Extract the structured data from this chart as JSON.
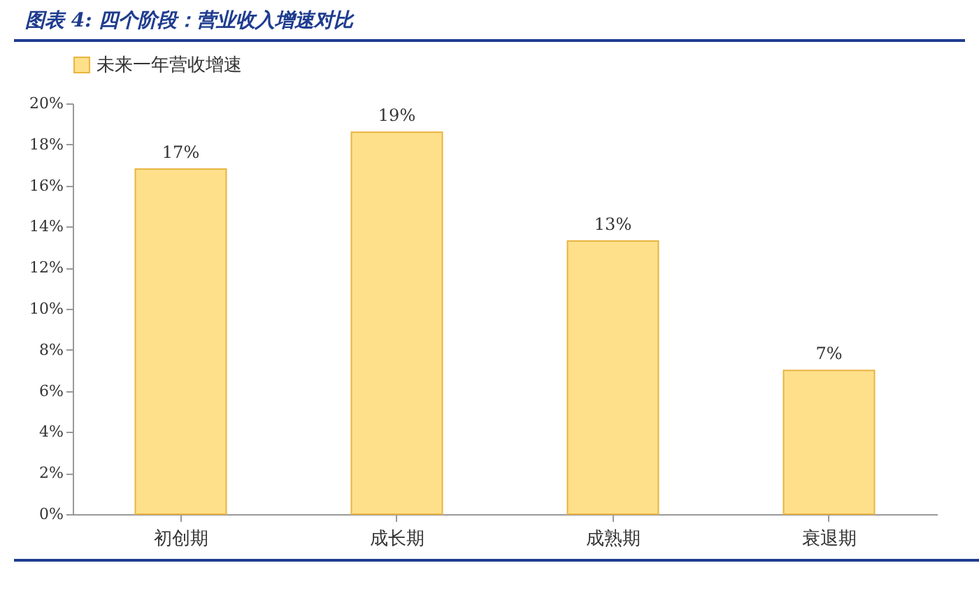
{
  "chart_data": {
    "type": "bar",
    "title": "图表 4: 四个阶段：营业收入增速对比",
    "categories": [
      "初创期",
      "成长期",
      "成熟期",
      "衰退期"
    ],
    "series": [
      {
        "name": "未来一年营收增速",
        "color": "#fee08b",
        "values": [
          16.8,
          18.6,
          13.3,
          7.0
        ],
        "value_labels": [
          "17%",
          "19%",
          "13%",
          "7%"
        ]
      }
    ],
    "ylim": [
      0,
      20
    ],
    "yticks": [
      {
        "value": 0,
        "label": "0%"
      },
      {
        "value": 2,
        "label": "2%"
      },
      {
        "value": 4,
        "label": "4%"
      },
      {
        "value": 6,
        "label": "6%"
      },
      {
        "value": 8,
        "label": "8%"
      },
      {
        "value": 10,
        "label": "10%"
      },
      {
        "value": 12,
        "label": "12%"
      },
      {
        "value": 14,
        "label": "14%"
      },
      {
        "value": 16,
        "label": "16%"
      },
      {
        "value": 18,
        "label": "18%"
      },
      {
        "value": 20,
        "label": "20%"
      }
    ],
    "grid": false,
    "legend": "top"
  }
}
